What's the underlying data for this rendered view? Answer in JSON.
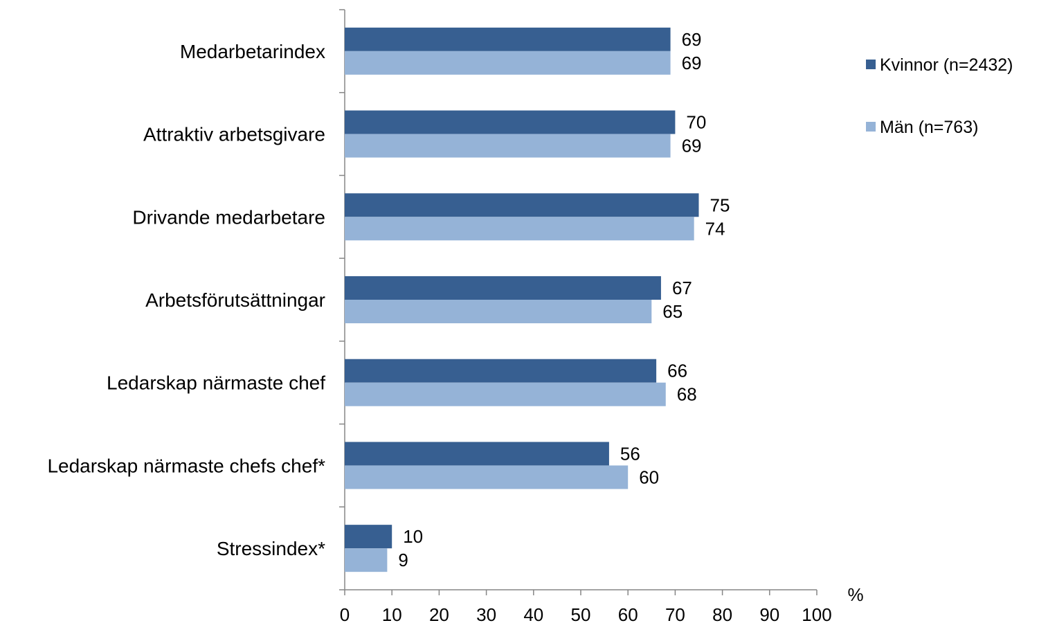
{
  "chart_data": {
    "type": "bar",
    "orientation": "horizontal",
    "categories": [
      "Medarbetarindex",
      "Attraktiv arbetsgivare",
      "Drivande medarbetare",
      "Arbetsförutsättningar",
      "Ledarskap närmaste chef",
      "Ledarskap närmaste chefs chef*",
      "Stressindex*"
    ],
    "series": [
      {
        "name": "Kvinnor (n=2432)",
        "color": "#375F91",
        "values": [
          69,
          70,
          75,
          67,
          66,
          56,
          10
        ]
      },
      {
        "name": "Män (n=763)",
        "color": "#95B3D7",
        "values": [
          69,
          69,
          74,
          65,
          68,
          60,
          9
        ]
      }
    ],
    "xlabel": "%",
    "xlim": [
      0,
      100
    ],
    "xticks": [
      0,
      10,
      20,
      30,
      40,
      50,
      60,
      70,
      80,
      90,
      100
    ],
    "grid": false,
    "data_labels": true,
    "legend_position": "top-right"
  }
}
